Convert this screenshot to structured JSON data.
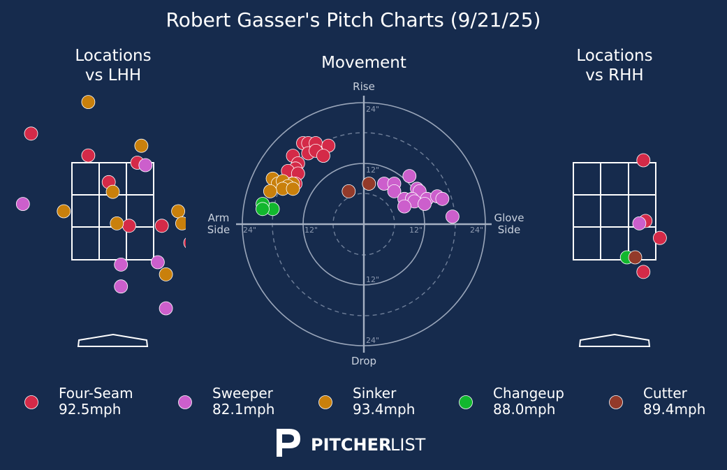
{
  "title": "Robert Gasser's Pitch Charts (9/21/25)",
  "panels": {
    "lhh_title": [
      "Locations",
      "vs LHH"
    ],
    "movement_title": "Movement",
    "rhh_title": [
      "Locations",
      "vs RHH"
    ]
  },
  "movement_axes": {
    "top": "Rise",
    "bottom": "Drop",
    "left": [
      "Arm",
      "Side"
    ],
    "right": [
      "Glove",
      "Side"
    ],
    "ring_labels": [
      "12\"",
      "24\""
    ]
  },
  "legend": [
    {
      "pitch": "Four-Seam",
      "velo": "92.5mph",
      "color": "#d42a48"
    },
    {
      "pitch": "Sweeper",
      "velo": "82.1mph",
      "color": "#cc5fcc"
    },
    {
      "pitch": "Sinker",
      "velo": "93.4mph",
      "color": "#c9800c"
    },
    {
      "pitch": "Changeup",
      "velo": "88.0mph",
      "color": "#12b72e"
    },
    {
      "pitch": "Cutter",
      "velo": "89.4mph",
      "color": "#933a2a"
    }
  ],
  "logo": {
    "bold": "PITCHER",
    "light": "LIST"
  },
  "chart_data": [
    {
      "type": "scatter",
      "title": "Movement",
      "units": "inches",
      "x_axis": "horizontal break (negative = arm side, positive = glove side)",
      "y_axis": "vertical break (positive = rise)",
      "xlim": [
        -24,
        24
      ],
      "ylim": [
        -24,
        24
      ],
      "series": [
        {
          "name": "Four-Seam",
          "points": [
            [
              -12,
              16
            ],
            [
              -11,
              16
            ],
            [
              -9.5,
              16
            ],
            [
              -7,
              15.5
            ],
            [
              -14,
              13.5
            ],
            [
              -11,
              14
            ],
            [
              -9.5,
              14.5
            ],
            [
              -8,
              13.5
            ],
            [
              -13,
              12
            ],
            [
              -13.5,
              11
            ],
            [
              -15,
              10.5
            ],
            [
              -13,
              10
            ],
            [
              -13.5,
              8
            ]
          ]
        },
        {
          "name": "Sweeper",
          "points": [
            [
              9,
              9.5
            ],
            [
              4,
              8
            ],
            [
              6,
              8
            ],
            [
              10.5,
              7
            ],
            [
              11,
              6.5
            ],
            [
              6,
              6.5
            ],
            [
              8,
              5
            ],
            [
              9.5,
              5
            ],
            [
              10,
              4.5
            ],
            [
              12.5,
              5
            ],
            [
              14.5,
              5.5
            ],
            [
              15.5,
              5
            ],
            [
              8,
              3.5
            ],
            [
              12,
              4
            ],
            [
              17.5,
              1.5
            ]
          ]
        },
        {
          "name": "Sinker",
          "points": [
            [
              -18,
              9
            ],
            [
              -17,
              8
            ],
            [
              -16,
              8.5
            ],
            [
              -14,
              8
            ],
            [
              -15,
              7.5
            ],
            [
              -16,
              7
            ],
            [
              -14,
              7
            ],
            [
              -18.5,
              6.5
            ]
          ]
        },
        {
          "name": "Changeup",
          "points": [
            [
              -18,
              3
            ],
            [
              -20,
              4
            ],
            [
              -20,
              3
            ]
          ]
        },
        {
          "name": "Cutter",
          "points": [
            [
              -3,
              6.5
            ],
            [
              1,
              8
            ]
          ]
        }
      ]
    },
    {
      "type": "scatter",
      "title": "Locations vs LHH",
      "series": [
        {
          "name": "Four-Seam",
          "points": [
            [
              -2,
              4.1
            ],
            [
              -0.6,
              3.65
            ],
            [
              0.6,
              3.5
            ],
            [
              2.4,
              3.2
            ],
            [
              -0.1,
              3.1
            ],
            [
              0.4,
              2.2
            ],
            [
              1.2,
              2.2
            ],
            [
              1.9,
              1.85
            ],
            [
              2.3,
              0.6
            ]
          ]
        },
        {
          "name": "Sweeper",
          "points": [
            [
              0.8,
              3.45
            ],
            [
              2.1,
              2.95
            ],
            [
              -2.2,
              2.65
            ],
            [
              0.2,
              1.4
            ],
            [
              1.1,
              1.45
            ],
            [
              0.2,
              0.95
            ],
            [
              2.4,
              1.4
            ],
            [
              1.3,
              0.5
            ],
            [
              2.0,
              0.6
            ],
            [
              2.8,
              0.25
            ]
          ]
        },
        {
          "name": "Sinker",
          "points": [
            [
              -0.6,
              4.75
            ],
            [
              0.7,
              3.85
            ],
            [
              0.0,
              2.9
            ],
            [
              -1.2,
              2.5
            ],
            [
              1.6,
              2.5
            ],
            [
              1.7,
              2.25
            ],
            [
              2.0,
              2.25
            ],
            [
              0.1,
              2.25
            ],
            [
              1.3,
              1.2
            ]
          ]
        }
      ]
    },
    {
      "type": "scatter",
      "title": "Locations vs RHH",
      "series": [
        {
          "name": "Four-Seam",
          "points": [
            [
              0.7,
              3.55
            ],
            [
              2.0,
              3.1
            ],
            [
              0.75,
              2.3
            ],
            [
              1.1,
              1.95
            ],
            [
              0.7,
              1.25
            ]
          ]
        },
        {
          "name": "Sweeper",
          "points": [
            [
              -2.0,
              1.9
            ],
            [
              0.6,
              2.25
            ],
            [
              2.8,
              3.9
            ]
          ]
        },
        {
          "name": "Changeup",
          "points": [
            [
              0.3,
              1.55
            ],
            [
              2.0,
              1.3
            ],
            [
              2.4,
              0.85
            ]
          ]
        },
        {
          "name": "Cutter",
          "points": [
            [
              0.5,
              1.55
            ]
          ]
        }
      ]
    }
  ]
}
